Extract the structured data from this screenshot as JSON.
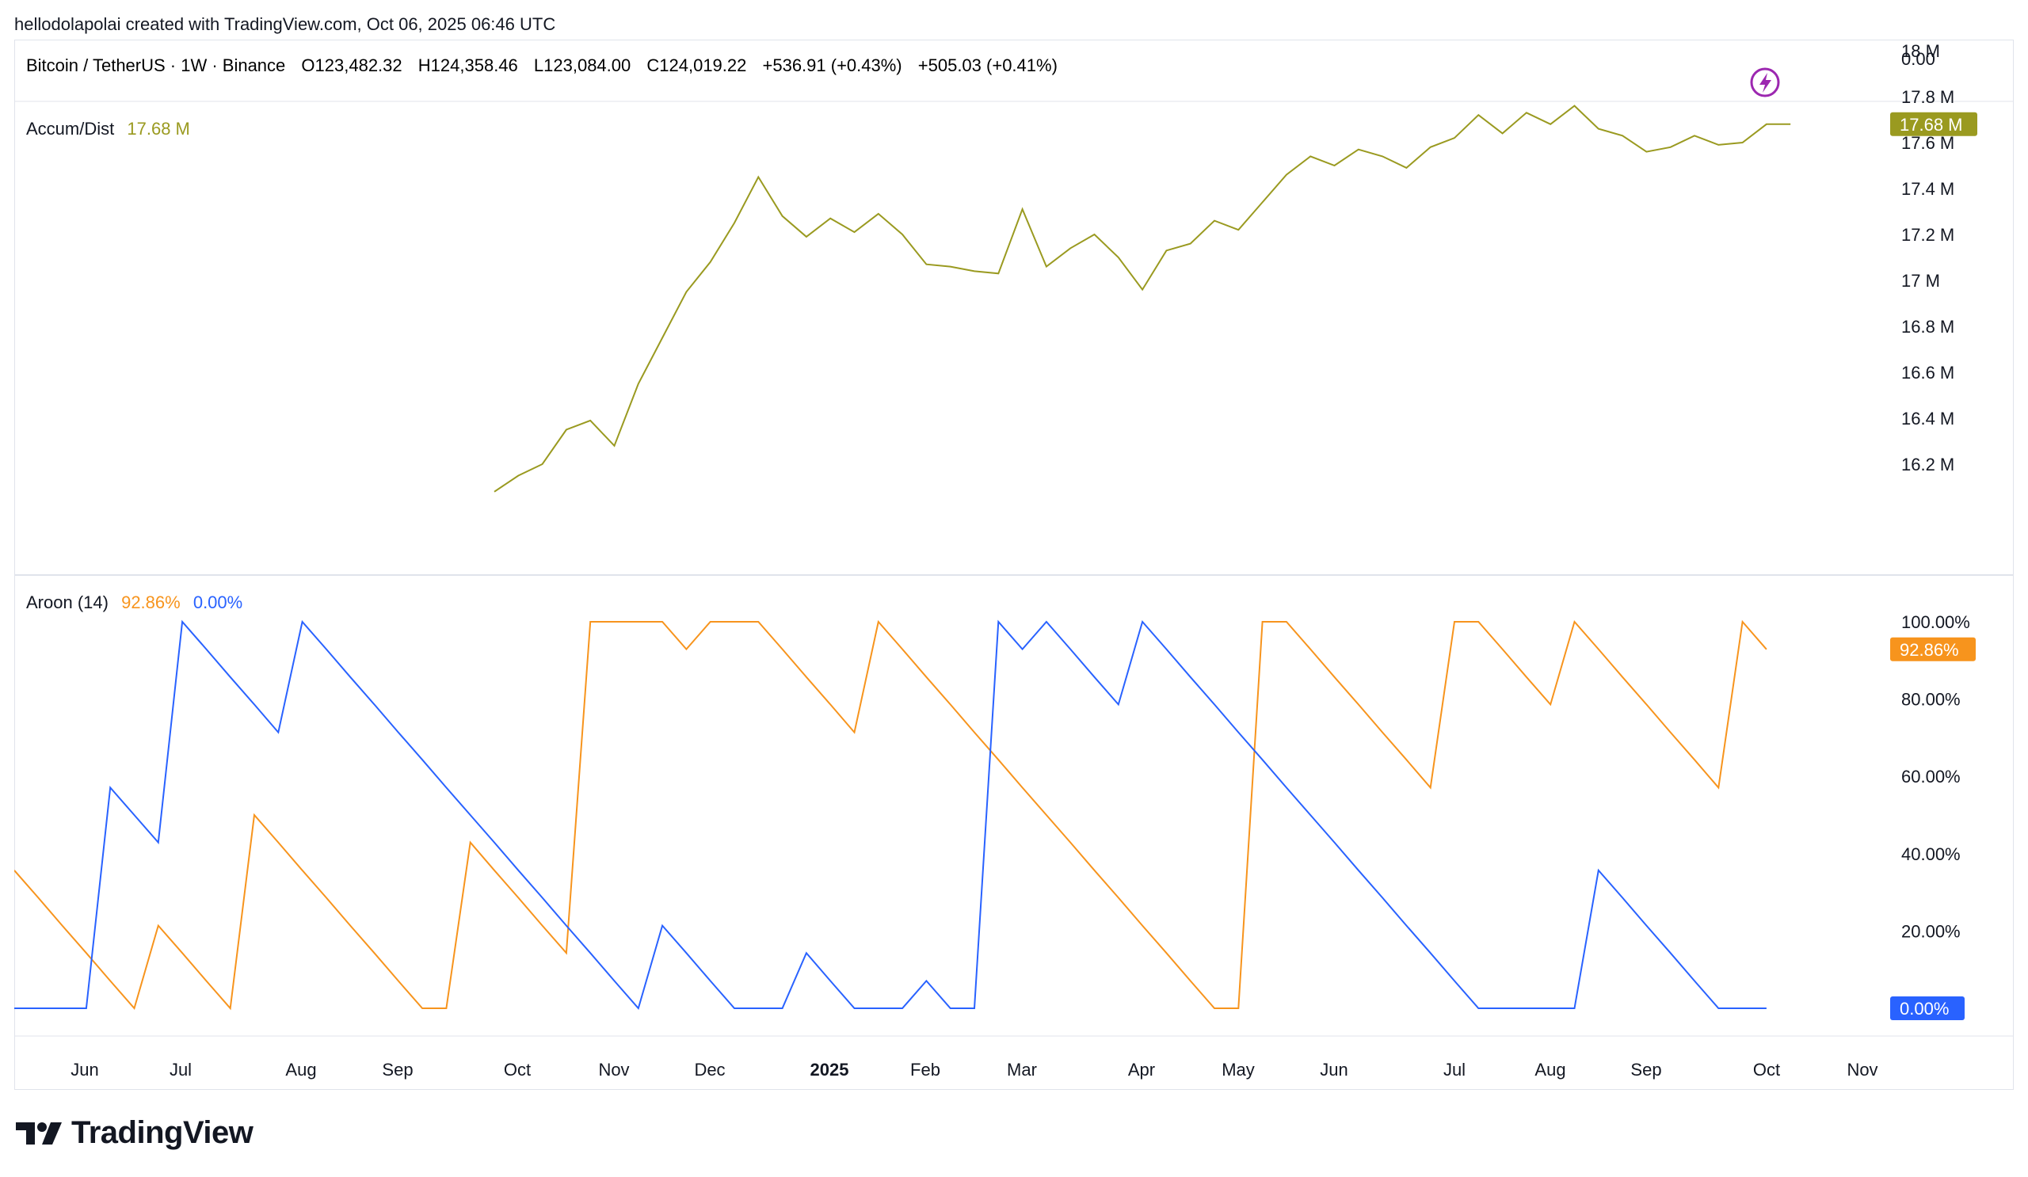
{
  "credit": "hellodolapolai created with TradingView.com, Oct 06, 2025 06:46 UTC",
  "brand": {
    "logo_text": "TradingView"
  },
  "colors": {
    "ad_line": "#9a9a20",
    "aroon_up": "#f7941d",
    "aroon_down": "#2962ff",
    "text": "#131722",
    "divider": "#e0e3eb",
    "accent": "#9c27b0"
  },
  "icons": {
    "alert": "lightning-bolt-icon"
  },
  "header": {
    "symbol": "Bitcoin / TetherUS · 1W · Binance",
    "open": "O123,482.32",
    "high": "H124,358.46",
    "low": "L123,084.00",
    "close": "C124,019.22",
    "change": "+536.91 (+0.43%)",
    "change2": "+505.03 (+0.41%)",
    "axis_value": "0.00"
  },
  "chart_data": [
    {
      "type": "line",
      "title": "Accum/Dist",
      "last_value": "17.68 M",
      "y_ticks": [
        "18 M",
        "17.8 M",
        "17.6 M",
        "17.4 M",
        "17.2 M",
        "17 M",
        "16.8 M",
        "16.6 M",
        "16.4 M",
        "16.2 M"
      ],
      "ylim": [
        16.1,
        18.1
      ],
      "unit": "M",
      "series": [
        {
          "values": [
            null,
            null,
            null,
            null,
            null,
            null,
            null,
            null,
            null,
            null,
            null,
            null,
            null,
            null,
            null,
            null,
            null,
            null,
            null,
            null,
            16.08,
            16.15,
            16.2,
            16.35,
            16.39,
            16.28,
            16.55,
            16.75,
            16.95,
            17.08,
            17.25,
            17.45,
            17.28,
            17.19,
            17.27,
            17.21,
            17.29,
            17.2,
            17.07,
            17.06,
            17.04,
            17.03,
            17.31,
            17.06,
            17.14,
            17.2,
            17.1,
            16.96,
            17.13,
            17.16,
            17.26,
            17.22,
            17.34,
            17.46,
            17.54,
            17.5,
            17.57,
            17.54,
            17.49,
            17.58,
            17.62,
            17.72,
            17.64,
            17.73,
            17.68,
            17.76,
            17.66,
            17.63,
            17.56,
            17.58,
            17.63,
            17.59,
            17.6,
            17.68,
            17.68
          ]
        }
      ]
    },
    {
      "type": "line",
      "title": "Aroon (14)",
      "up_value": "92.86%",
      "down_value": "0.00%",
      "y_ticks": [
        "100.00%",
        "80.00%",
        "60.00%",
        "40.00%",
        "20.00%",
        "0.00%"
      ],
      "ylim": [
        0,
        100
      ],
      "series": [
        {
          "values": [
            35.7,
            28.6,
            21.4,
            14.3,
            7.1,
            0,
            21.4,
            14.3,
            7.1,
            0,
            50,
            42.9,
            35.7,
            28.6,
            21.4,
            14.3,
            7.1,
            0,
            0,
            42.9,
            35.7,
            28.6,
            21.4,
            14.3,
            100,
            100,
            100,
            100,
            92.9,
            100,
            100,
            100,
            92.9,
            85.7,
            78.6,
            71.4,
            100,
            92.9,
            85.7,
            78.6,
            71.4,
            64.3,
            57.1,
            50,
            42.9,
            35.7,
            28.6,
            21.4,
            14.3,
            7.1,
            0,
            0,
            100,
            100,
            92.9,
            85.7,
            78.6,
            71.4,
            64.3,
            57.1,
            100,
            100,
            92.9,
            85.7,
            78.6,
            100,
            92.9,
            85.7,
            78.6,
            71.4,
            64.3,
            57.1,
            100,
            92.86
          ]
        },
        {
          "values": [
            0,
            0,
            0,
            0,
            57.1,
            50,
            42.9,
            100,
            92.9,
            85.7,
            78.6,
            71.4,
            100,
            92.9,
            85.7,
            78.6,
            71.4,
            64.3,
            57.1,
            50,
            42.9,
            35.7,
            28.6,
            21.4,
            14.3,
            7.1,
            0,
            21.4,
            14.3,
            7.1,
            0,
            0,
            0,
            14.3,
            7.1,
            0,
            0,
            0,
            7.1,
            0,
            0,
            100,
            92.9,
            100,
            92.9,
            85.7,
            78.6,
            100,
            92.9,
            85.7,
            78.6,
            71.4,
            64.3,
            57.1,
            50,
            42.9,
            35.7,
            28.6,
            21.4,
            14.3,
            7.1,
            0,
            0,
            0,
            0,
            0,
            35.7,
            28.6,
            21.4,
            14.3,
            7.1,
            0,
            0,
            0
          ]
        }
      ]
    }
  ],
  "x_axis": {
    "labels": [
      "Jun",
      "Jul",
      "Aug",
      "Sep",
      "Oct",
      "Nov",
      "Dec",
      "2025",
      "Feb",
      "Mar",
      "Apr",
      "May",
      "Jun",
      "Jul",
      "Aug",
      "Sep",
      "Oct",
      "Nov"
    ],
    "bold_label": "2025"
  }
}
